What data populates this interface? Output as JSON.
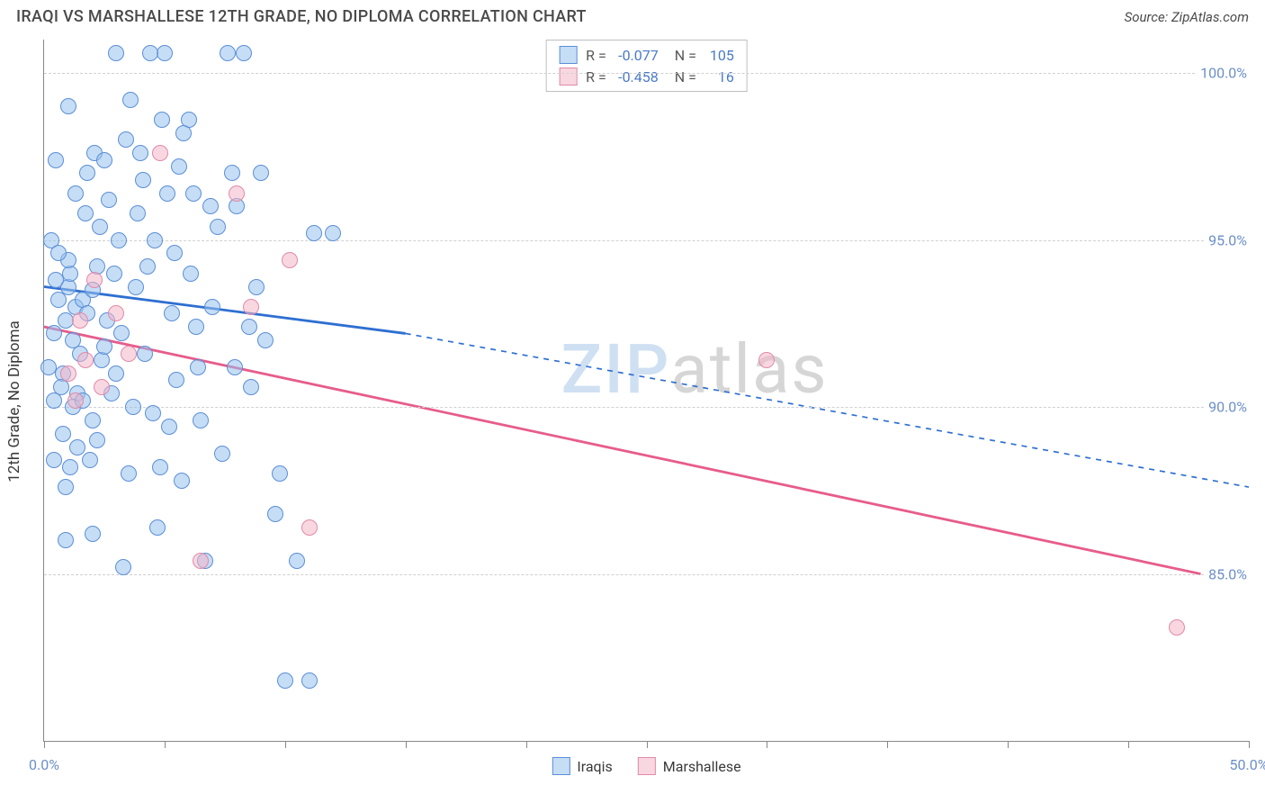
{
  "header": {
    "title": "IRAQI VS MARSHALLESE 12TH GRADE, NO DIPLOMA CORRELATION CHART",
    "source": "Source: ZipAtlas.com"
  },
  "ylabel": "12th Grade, No Diploma",
  "watermark": {
    "part1": "ZIP",
    "part2": "atlas"
  },
  "chart": {
    "type": "scatter",
    "background_color": "#ffffff",
    "grid_color": "#d0d0d0",
    "axis_color": "#888888",
    "ylabel_color": "#3a3a3a",
    "tick_label_color": "#6b8fc9",
    "xlim": [
      0,
      50
    ],
    "ylim": [
      80,
      101
    ],
    "yticks": [
      85,
      90,
      95,
      100
    ],
    "ytick_labels": [
      "85.0%",
      "90.0%",
      "95.0%",
      "100.0%"
    ],
    "xticks": [
      0,
      5,
      10,
      15,
      20,
      25,
      30,
      35,
      40,
      45,
      50
    ],
    "xtick_labels": {
      "0": "0.0%",
      "50": "50.0%"
    },
    "marker_size": 18,
    "series": [
      {
        "name": "Iraqis",
        "fill_color": "rgba(152,193,238,0.55)",
        "stroke_color": "#5b8fd6",
        "trend": {
          "x1": 0,
          "y1": 93.6,
          "x2_solid": 15,
          "y2_solid": 92.2,
          "x2": 50,
          "y2": 87.6,
          "color": "#2e6fd1",
          "width": 2.8,
          "dash": "6 6"
        },
        "stats": {
          "R": "-0.077",
          "N": "105"
        },
        "points": [
          [
            1.0,
            93.6
          ],
          [
            1.2,
            92.0
          ],
          [
            0.8,
            91.0
          ],
          [
            1.4,
            90.4
          ],
          [
            0.6,
            93.2
          ],
          [
            1.1,
            94.0
          ],
          [
            1.3,
            93.0
          ],
          [
            0.9,
            92.6
          ],
          [
            1.5,
            91.6
          ],
          [
            0.4,
            92.2
          ],
          [
            0.7,
            90.6
          ],
          [
            1.2,
            90.0
          ],
          [
            0.5,
            93.8
          ],
          [
            1.0,
            94.4
          ],
          [
            1.6,
            93.2
          ],
          [
            0.8,
            89.2
          ],
          [
            1.4,
            88.8
          ],
          [
            1.1,
            88.2
          ],
          [
            0.9,
            87.6
          ],
          [
            0.4,
            90.2
          ],
          [
            2.0,
            93.5
          ],
          [
            2.2,
            94.2
          ],
          [
            2.6,
            92.6
          ],
          [
            2.4,
            91.4
          ],
          [
            2.8,
            90.4
          ],
          [
            2.0,
            89.6
          ],
          [
            2.1,
            97.6
          ],
          [
            2.5,
            97.4
          ],
          [
            2.3,
            95.4
          ],
          [
            2.9,
            94.0
          ],
          [
            3.0,
            91.0
          ],
          [
            3.2,
            92.2
          ],
          [
            3.1,
            95.0
          ],
          [
            3.4,
            98.0
          ],
          [
            3.3,
            85.2
          ],
          [
            3.8,
            93.6
          ],
          [
            4.0,
            97.6
          ],
          [
            4.1,
            96.8
          ],
          [
            4.3,
            94.2
          ],
          [
            4.2,
            91.6
          ],
          [
            4.5,
            89.8
          ],
          [
            4.9,
            98.6
          ],
          [
            5.0,
            100.6
          ],
          [
            5.1,
            96.4
          ],
          [
            5.3,
            92.8
          ],
          [
            5.5,
            90.8
          ],
          [
            5.6,
            97.2
          ],
          [
            6.0,
            98.6
          ],
          [
            6.2,
            96.4
          ],
          [
            6.3,
            92.4
          ],
          [
            6.5,
            89.6
          ],
          [
            6.7,
            85.4
          ],
          [
            7.0,
            93.0
          ],
          [
            7.2,
            95.4
          ],
          [
            7.4,
            88.6
          ],
          [
            7.6,
            100.6
          ],
          [
            7.8,
            97.0
          ],
          [
            8.0,
            96.0
          ],
          [
            8.3,
            100.6
          ],
          [
            8.5,
            92.4
          ],
          [
            8.8,
            93.6
          ],
          [
            9.0,
            97.0
          ],
          [
            9.2,
            92.0
          ],
          [
            9.6,
            86.8
          ],
          [
            9.8,
            88.0
          ],
          [
            10.0,
            81.8
          ],
          [
            10.5,
            85.4
          ],
          [
            11.0,
            81.8
          ],
          [
            11.2,
            95.2
          ],
          [
            12.0,
            95.2
          ],
          [
            4.4,
            100.6
          ],
          [
            5.8,
            98.2
          ],
          [
            3.6,
            99.2
          ],
          [
            1.8,
            97.0
          ],
          [
            2.7,
            96.2
          ],
          [
            3.9,
            95.8
          ],
          [
            4.6,
            95.0
          ],
          [
            5.4,
            94.6
          ],
          [
            6.1,
            94.0
          ],
          [
            1.9,
            88.4
          ],
          [
            3.5,
            88.0
          ],
          [
            5.7,
            87.8
          ],
          [
            4.7,
            86.4
          ],
          [
            6.4,
            91.2
          ],
          [
            7.9,
            91.2
          ],
          [
            8.6,
            90.6
          ],
          [
            3.7,
            90.0
          ],
          [
            2.2,
            89.0
          ],
          [
            1.7,
            95.8
          ],
          [
            0.3,
            95.0
          ],
          [
            0.5,
            97.4
          ],
          [
            1.0,
            99.0
          ],
          [
            1.3,
            96.4
          ],
          [
            1.6,
            90.2
          ],
          [
            2.0,
            86.2
          ],
          [
            0.9,
            86.0
          ],
          [
            0.4,
            88.4
          ],
          [
            0.2,
            91.2
          ],
          [
            0.6,
            94.6
          ],
          [
            1.8,
            92.8
          ],
          [
            2.5,
            91.8
          ],
          [
            4.8,
            88.2
          ],
          [
            6.9,
            96.0
          ],
          [
            5.2,
            89.4
          ],
          [
            3.0,
            100.6
          ]
        ]
      },
      {
        "name": "Marshallese",
        "fill_color": "rgba(244,182,200,0.55)",
        "stroke_color": "#e08aa8",
        "trend": {
          "x1": 0,
          "y1": 92.4,
          "x2_solid": 48,
          "y2_solid": 85.0,
          "x2": 48,
          "y2": 85.0,
          "color": "#e75c8b",
          "width": 2.8,
          "dash": "none"
        },
        "stats": {
          "R": "-0.458",
          "N": "16"
        },
        "points": [
          [
            1.0,
            91.0
          ],
          [
            1.3,
            90.2
          ],
          [
            1.5,
            92.6
          ],
          [
            1.7,
            91.4
          ],
          [
            2.1,
            93.8
          ],
          [
            2.4,
            90.6
          ],
          [
            3.0,
            92.8
          ],
          [
            3.5,
            91.6
          ],
          [
            4.8,
            97.6
          ],
          [
            6.5,
            85.4
          ],
          [
            8.0,
            96.4
          ],
          [
            8.6,
            93.0
          ],
          [
            10.2,
            94.4
          ],
          [
            11.0,
            86.4
          ],
          [
            30.0,
            91.4
          ],
          [
            47.0,
            83.4
          ]
        ]
      }
    ]
  },
  "legend": {
    "series1_label": "Iraqis",
    "series2_label": "Marshallese"
  }
}
